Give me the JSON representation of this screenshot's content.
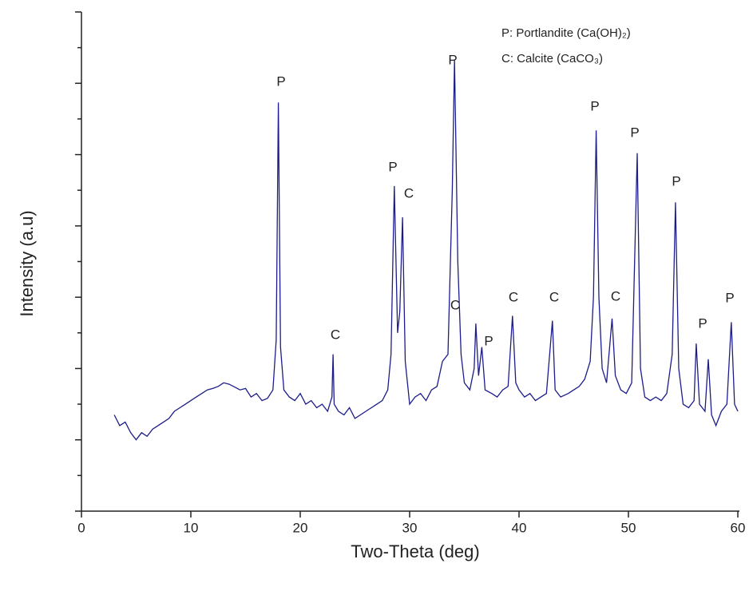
{
  "chart_data": {
    "type": "line",
    "xlabel": "Two-Theta (deg)",
    "ylabel": "Intensity (a.u)",
    "legend_texts": [
      "P: Portlandite (Ca(OH)₂)",
      "C: Calcite (CaCO₃)"
    ],
    "annotations": [
      "P",
      "C",
      "P",
      "C",
      "P",
      "C",
      "P",
      "C",
      "C",
      "P",
      "C",
      "P",
      "P",
      "P",
      "P"
    ],
    "color": "#1c1c8a",
    "xlim": [
      0,
      60
    ],
    "xticks": [
      0,
      10,
      20,
      30,
      40,
      50,
      60
    ],
    "ylim": [
      0,
      7
    ],
    "yticks": [
      0,
      0.5,
      1,
      1.5,
      2,
      2.5,
      3,
      3.5,
      4,
      4.5,
      5,
      5.5,
      6,
      6.5,
      7
    ],
    "x": [
      3,
      3.5,
      4,
      4.5,
      5,
      5.5,
      6,
      6.5,
      7,
      7.5,
      8,
      8.5,
      9,
      9.5,
      10,
      10.5,
      11,
      11.5,
      12,
      12.5,
      13,
      13.5,
      14,
      14.5,
      15,
      15.5,
      16,
      16.5,
      17,
      17.5,
      17.8,
      18,
      18.2,
      18.5,
      19,
      19.5,
      20,
      20.5,
      21,
      21.5,
      22,
      22.5,
      22.9,
      23,
      23.1,
      23.5,
      24,
      24.5,
      25,
      25.5,
      26,
      26.5,
      27,
      27.5,
      28,
      28.3,
      28.6,
      28.9,
      29.1,
      29.35,
      29.6,
      30,
      30.5,
      31,
      31.5,
      32,
      32.5,
      33,
      33.5,
      33.9,
      34.1,
      34.4,
      34.7,
      35,
      35.5,
      35.9,
      36.05,
      36.3,
      36.6,
      36.9,
      37.5,
      38,
      38.5,
      39,
      39.4,
      39.7,
      40,
      40.5,
      41,
      41.5,
      42,
      42.5,
      43.05,
      43.3,
      43.8,
      44.5,
      45,
      45.5,
      46,
      46.5,
      46.8,
      47.05,
      47.3,
      47.6,
      48,
      48.5,
      48.8,
      49.3,
      49.8,
      50.3,
      50.8,
      51.1,
      51.5,
      52,
      52.5,
      53,
      53.5,
      54,
      54.3,
      54.6,
      55,
      55.5,
      56,
      56.2,
      56.5,
      57,
      57.3,
      57.6,
      58,
      58.5,
      59,
      59.4,
      59.7,
      60
    ],
    "values": [
      1.35,
      1.2,
      1.25,
      1.1,
      1.0,
      1.1,
      1.05,
      1.15,
      1.2,
      1.25,
      1.3,
      1.4,
      1.45,
      1.5,
      1.55,
      1.6,
      1.65,
      1.7,
      1.72,
      1.75,
      1.8,
      1.78,
      1.74,
      1.7,
      1.72,
      1.6,
      1.65,
      1.55,
      1.58,
      1.7,
      2.4,
      5.73,
      2.3,
      1.7,
      1.6,
      1.55,
      1.65,
      1.5,
      1.55,
      1.45,
      1.5,
      1.4,
      1.6,
      2.2,
      1.5,
      1.4,
      1.35,
      1.45,
      1.3,
      1.35,
      1.4,
      1.45,
      1.5,
      1.55,
      1.7,
      2.2,
      4.56,
      2.5,
      2.8,
      4.12,
      2.1,
      1.5,
      1.6,
      1.65,
      1.55,
      1.7,
      1.75,
      2.1,
      2.2,
      4.5,
      6.33,
      3.5,
      2.2,
      1.8,
      1.7,
      2.0,
      2.63,
      1.9,
      2.3,
      1.7,
      1.65,
      1.6,
      1.7,
      1.75,
      2.74,
      1.8,
      1.7,
      1.6,
      1.65,
      1.55,
      1.6,
      1.65,
      2.67,
      1.7,
      1.6,
      1.65,
      1.7,
      1.75,
      1.85,
      2.1,
      3.0,
      5.34,
      3.0,
      2.0,
      1.8,
      2.7,
      1.9,
      1.7,
      1.65,
      1.8,
      5.02,
      2.0,
      1.6,
      1.55,
      1.6,
      1.55,
      1.65,
      2.2,
      4.33,
      2.0,
      1.5,
      1.45,
      1.55,
      2.35,
      1.5,
      1.4,
      2.13,
      1.35,
      1.2,
      1.4,
      1.5,
      2.65,
      1.5,
      1.4
    ]
  }
}
